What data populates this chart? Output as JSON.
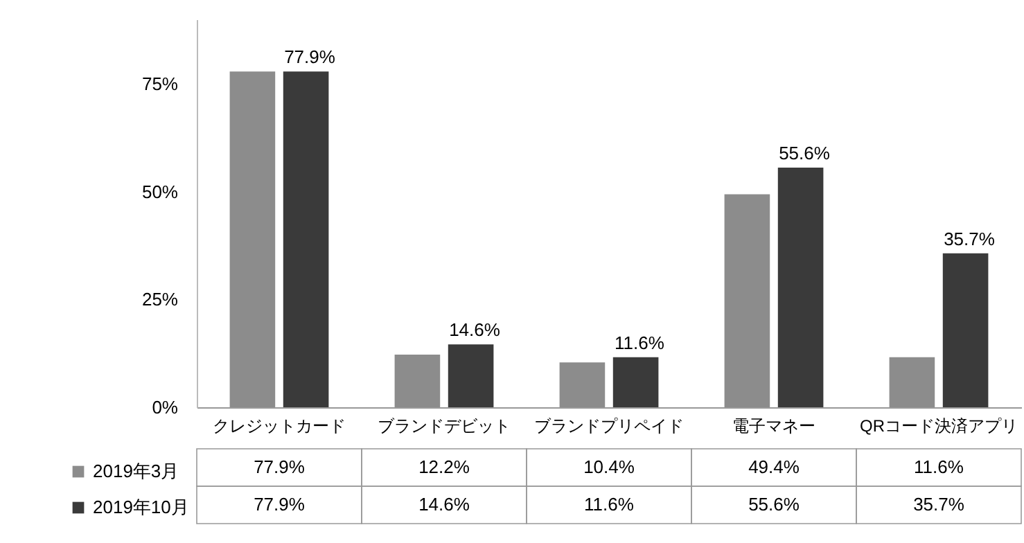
{
  "chart_data": {
    "type": "bar",
    "categories": [
      "クレジットカード",
      "ブランドデビット",
      "ブランドプリペイド",
      "電子マネー",
      "QRコード決済アプリ"
    ],
    "series": [
      {
        "name": "2019年3月",
        "color": "#8c8c8c",
        "values": [
          77.9,
          12.2,
          10.4,
          49.4,
          11.6
        ],
        "value_labels": [
          "77.9%",
          "12.2%",
          "10.4%",
          "49.4%",
          "11.6%"
        ]
      },
      {
        "name": "2019年10月",
        "color": "#3a3a3a",
        "values": [
          77.9,
          14.6,
          11.6,
          55.6,
          35.7
        ],
        "value_labels": [
          "77.9%",
          "14.6%",
          "11.6%",
          "55.6%",
          "35.7%"
        ]
      }
    ],
    "ylim": [
      0,
      90
    ],
    "yticks": [
      {
        "value": 0,
        "label": "0%"
      },
      {
        "value": 25,
        "label": "25%"
      },
      {
        "value": 50,
        "label": "50%"
      },
      {
        "value": 75,
        "label": "75%"
      }
    ],
    "grid": false,
    "legend": "bottom left",
    "annotations": [
      {
        "text": "77.9%",
        "x": "クレジットカード",
        "y": 77.9
      },
      {
        "text": "14.6%",
        "x": "ブランドデビット",
        "y": 14.6
      },
      {
        "text": "11.6%",
        "x": "ブランドプリペイド",
        "y": 11.6
      },
      {
        "text": "55.6%",
        "x": "電子マネー",
        "y": 55.6
      },
      {
        "text": "35.7%",
        "x": "QRコード決済アプリ",
        "y": 35.7
      }
    ]
  }
}
